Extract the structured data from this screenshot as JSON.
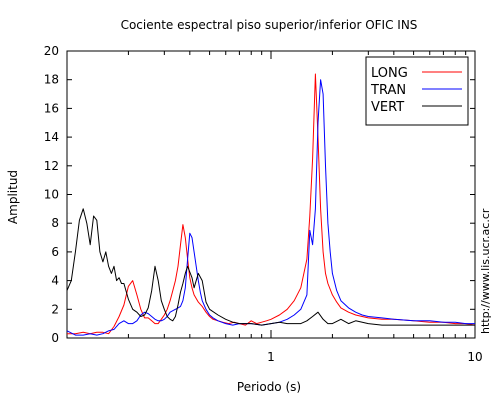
{
  "chart_data": {
    "type": "line",
    "title": "Cociente espectral piso superior/inferior  OFIC INS",
    "xlabel": "Periodo (s)",
    "ylabel": "Amplitud",
    "x_scale": "log",
    "xlim": [
      0.1,
      10
    ],
    "ylim": [
      0,
      20
    ],
    "x_tick_labels": [
      "1",
      "10"
    ],
    "y_ticks": [
      0,
      2,
      4,
      6,
      8,
      10,
      12,
      14,
      16,
      18,
      20
    ],
    "y_tick_labels": [
      "0",
      "2",
      "4",
      "6",
      "8",
      "10",
      "12",
      "14",
      "16",
      "18",
      "20"
    ],
    "legend_position": "top-right",
    "grid": false,
    "annotation": "http://www.lis.ucr.ac.cr",
    "series": [
      {
        "name": "LONG",
        "color": "#ff0000",
        "x": [
          0.1,
          0.11,
          0.12,
          0.13,
          0.14,
          0.15,
          0.16,
          0.17,
          0.18,
          0.19,
          0.2,
          0.21,
          0.22,
          0.23,
          0.24,
          0.25,
          0.26,
          0.27,
          0.28,
          0.29,
          0.3,
          0.31,
          0.32,
          0.33,
          0.34,
          0.35,
          0.36,
          0.37,
          0.38,
          0.39,
          0.4,
          0.41,
          0.42,
          0.44,
          0.46,
          0.48,
          0.5,
          0.52,
          0.55,
          0.58,
          0.62,
          0.66,
          0.7,
          0.75,
          0.8,
          0.85,
          0.9,
          0.95,
          1.0,
          1.1,
          1.2,
          1.3,
          1.4,
          1.5,
          1.55,
          1.6,
          1.65,
          1.7,
          1.75,
          1.8,
          1.85,
          1.9,
          2.0,
          2.1,
          2.2,
          2.4,
          2.6,
          2.8,
          3.0,
          3.5,
          4,
          5,
          6,
          7,
          8,
          9,
          10
        ],
        "y": [
          0.3,
          0.3,
          0.4,
          0.3,
          0.4,
          0.4,
          0.3,
          0.8,
          1.5,
          2.3,
          3.6,
          4.0,
          3.0,
          2.0,
          1.4,
          1.4,
          1.2,
          1.0,
          1.0,
          1.3,
          1.6,
          2.0,
          2.6,
          3.3,
          4.0,
          5.0,
          6.5,
          7.9,
          7.0,
          5.5,
          4.2,
          3.5,
          3.0,
          2.5,
          2.2,
          1.8,
          1.5,
          1.3,
          1.2,
          1.1,
          1.0,
          1.1,
          1.0,
          0.9,
          1.2,
          1.0,
          1.1,
          1.2,
          1.3,
          1.6,
          2.0,
          2.6,
          3.5,
          5.5,
          8.5,
          12.5,
          18.4,
          14.0,
          9.0,
          6.0,
          4.5,
          3.8,
          3.0,
          2.5,
          2.1,
          1.8,
          1.6,
          1.5,
          1.4,
          1.3,
          1.3,
          1.2,
          1.1,
          1.1,
          1.0,
          1.0,
          0.9
        ]
      },
      {
        "name": "TRAN",
        "color": "#0000ff",
        "x": [
          0.1,
          0.11,
          0.12,
          0.13,
          0.14,
          0.15,
          0.16,
          0.17,
          0.18,
          0.19,
          0.2,
          0.21,
          0.22,
          0.23,
          0.24,
          0.25,
          0.26,
          0.27,
          0.28,
          0.29,
          0.3,
          0.31,
          0.32,
          0.33,
          0.34,
          0.35,
          0.36,
          0.37,
          0.38,
          0.39,
          0.4,
          0.41,
          0.42,
          0.43,
          0.44,
          0.45,
          0.46,
          0.47,
          0.48,
          0.5,
          0.52,
          0.55,
          0.6,
          0.65,
          0.7,
          0.8,
          0.9,
          1.0,
          1.1,
          1.2,
          1.3,
          1.4,
          1.5,
          1.55,
          1.6,
          1.65,
          1.7,
          1.75,
          1.8,
          1.85,
          1.9,
          1.95,
          2.0,
          2.1,
          2.2,
          2.4,
          2.6,
          2.8,
          3.0,
          3.5,
          4,
          5,
          6,
          7,
          8,
          9,
          10
        ],
        "y": [
          0.5,
          0.2,
          0.2,
          0.3,
          0.2,
          0.3,
          0.5,
          0.6,
          1.0,
          1.2,
          1.0,
          1.0,
          1.2,
          1.6,
          1.8,
          1.7,
          1.5,
          1.3,
          1.2,
          1.2,
          1.3,
          1.5,
          1.8,
          1.9,
          2.0,
          2.1,
          2.2,
          2.6,
          3.5,
          5.5,
          7.3,
          7.0,
          6.0,
          5.0,
          4.0,
          3.2,
          2.6,
          2.3,
          2.0,
          1.6,
          1.4,
          1.2,
          1.0,
          0.9,
          1.0,
          1.0,
          0.9,
          1.0,
          1.1,
          1.3,
          1.6,
          2.0,
          3.0,
          7.5,
          6.5,
          9.0,
          15.0,
          18.0,
          17.0,
          12.0,
          8.0,
          6.0,
          4.5,
          3.3,
          2.6,
          2.1,
          1.8,
          1.6,
          1.5,
          1.4,
          1.3,
          1.2,
          1.2,
          1.1,
          1.1,
          1.0,
          1.0
        ]
      },
      {
        "name": "VERT",
        "color": "#000000",
        "x": [
          0.1,
          0.105,
          0.11,
          0.115,
          0.12,
          0.125,
          0.13,
          0.135,
          0.14,
          0.145,
          0.15,
          0.155,
          0.16,
          0.165,
          0.17,
          0.175,
          0.18,
          0.185,
          0.19,
          0.2,
          0.21,
          0.22,
          0.23,
          0.24,
          0.25,
          0.26,
          0.27,
          0.28,
          0.29,
          0.3,
          0.31,
          0.32,
          0.33,
          0.34,
          0.35,
          0.36,
          0.37,
          0.38,
          0.39,
          0.4,
          0.41,
          0.42,
          0.44,
          0.46,
          0.48,
          0.5,
          0.55,
          0.6,
          0.65,
          0.7,
          0.8,
          0.9,
          1.0,
          1.1,
          1.2,
          1.3,
          1.4,
          1.5,
          1.6,
          1.7,
          1.8,
          1.9,
          2.0,
          2.2,
          2.4,
          2.6,
          3.0,
          3.5,
          4,
          5,
          6,
          7,
          8,
          9,
          10
        ],
        "y": [
          3.3,
          4.0,
          6.0,
          8.2,
          9.0,
          8.0,
          6.5,
          8.5,
          8.2,
          6.0,
          5.3,
          6.0,
          5.0,
          4.5,
          5.0,
          4.0,
          4.2,
          3.8,
          3.8,
          2.7,
          2.0,
          1.8,
          1.5,
          1.6,
          2.1,
          3.3,
          5.0,
          4.0,
          2.6,
          2.0,
          1.5,
          1.3,
          1.2,
          1.5,
          2.3,
          3.2,
          3.8,
          4.5,
          5.0,
          4.6,
          4.2,
          3.5,
          4.5,
          4.0,
          2.5,
          2.0,
          1.6,
          1.3,
          1.1,
          1.0,
          1.0,
          0.9,
          1.0,
          1.1,
          1.0,
          1.0,
          1.0,
          1.2,
          1.5,
          1.8,
          1.3,
          1.0,
          1.0,
          1.3,
          1.0,
          1.2,
          1.0,
          0.9,
          0.9,
          0.9,
          0.9,
          0.9,
          0.9,
          0.9,
          0.9
        ]
      }
    ]
  }
}
